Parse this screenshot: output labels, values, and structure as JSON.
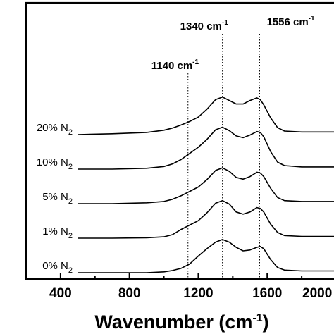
{
  "chart_data": {
    "type": "line",
    "xlabel": "Wavenumber (cm-1)",
    "xlabel_parts": {
      "main": "Wavenumber (cm",
      "sup": "-1",
      "close": ")"
    },
    "ylabel": "",
    "xlim": [
      200,
      2000
    ],
    "ylim": [
      0,
      5
    ],
    "x_ticks": [
      400,
      800,
      1200,
      1600,
      2000
    ],
    "x_tick_labels": [
      "400",
      "800",
      "1200",
      "1600",
      "2000"
    ],
    "grid": false,
    "reference_lines": [
      {
        "x": 1140,
        "label": "1140 cm",
        "sup": "-1"
      },
      {
        "x": 1340,
        "label": "1340 cm",
        "sup": "-1"
      },
      {
        "x": 1556,
        "label": "1556 cm",
        "sup": "-1"
      }
    ],
    "series": [
      {
        "name": "0% N2",
        "label_main": "0% N",
        "label_sub": "2",
        "offset": 0,
        "x": [
          500,
          700,
          900,
          1000,
          1050,
          1100,
          1150,
          1200,
          1250,
          1300,
          1340,
          1380,
          1420,
          1460,
          1500,
          1540,
          1560,
          1580,
          1620,
          1660,
          1700,
          1800,
          2000
        ],
        "y": [
          0.0,
          0.0,
          0.0,
          0.02,
          0.05,
          0.1,
          0.2,
          0.38,
          0.55,
          0.7,
          0.76,
          0.7,
          0.58,
          0.5,
          0.52,
          0.58,
          0.6,
          0.55,
          0.3,
          0.12,
          0.06,
          0.04,
          0.04
        ]
      },
      {
        "name": "1% N2",
        "label_main": "1% N",
        "label_sub": "2",
        "offset": 1,
        "x": [
          500,
          700,
          900,
          1000,
          1050,
          1100,
          1150,
          1200,
          1250,
          1300,
          1340,
          1380,
          1420,
          1460,
          1500,
          1540,
          1560,
          1580,
          1620,
          1660,
          1700,
          1800,
          2000
        ],
        "y": [
          0.0,
          0.0,
          0.01,
          0.03,
          0.08,
          0.2,
          0.3,
          0.4,
          0.58,
          0.8,
          0.86,
          0.78,
          0.6,
          0.55,
          0.6,
          0.7,
          0.68,
          0.6,
          0.32,
          0.13,
          0.06,
          0.04,
          0.04
        ]
      },
      {
        "name": "5% N2",
        "label_main": "5% N",
        "label_sub": "2",
        "offset": 2,
        "x": [
          500,
          700,
          900,
          1000,
          1050,
          1100,
          1150,
          1200,
          1250,
          1300,
          1340,
          1380,
          1420,
          1460,
          1500,
          1540,
          1560,
          1580,
          1620,
          1660,
          1700,
          1800,
          2000
        ],
        "y": [
          0.0,
          0.0,
          0.02,
          0.05,
          0.1,
          0.18,
          0.28,
          0.38,
          0.55,
          0.76,
          0.82,
          0.74,
          0.6,
          0.56,
          0.62,
          0.72,
          0.7,
          0.62,
          0.35,
          0.14,
          0.07,
          0.05,
          0.05
        ]
      },
      {
        "name": "10% N2",
        "label_main": "10% N",
        "label_sub": "2",
        "offset": 3,
        "x": [
          500,
          700,
          900,
          1000,
          1050,
          1100,
          1150,
          1200,
          1250,
          1300,
          1340,
          1380,
          1420,
          1460,
          1500,
          1540,
          1560,
          1580,
          1620,
          1660,
          1700,
          1800,
          2000
        ],
        "y": [
          0.0,
          0.0,
          0.02,
          0.06,
          0.12,
          0.22,
          0.36,
          0.5,
          0.68,
          0.9,
          0.96,
          0.88,
          0.76,
          0.72,
          0.78,
          0.86,
          0.84,
          0.74,
          0.4,
          0.16,
          0.08,
          0.05,
          0.05
        ]
      },
      {
        "name": "20% N2",
        "label_main": "20% N",
        "label_sub": "2",
        "offset": 4,
        "x": [
          500,
          700,
          900,
          1000,
          1050,
          1100,
          1150,
          1200,
          1250,
          1300,
          1340,
          1380,
          1420,
          1460,
          1500,
          1540,
          1560,
          1580,
          1620,
          1660,
          1700,
          1800,
          2000
        ],
        "y": [
          0.0,
          0.02,
          0.05,
          0.1,
          0.15,
          0.22,
          0.3,
          0.4,
          0.58,
          0.8,
          0.86,
          0.78,
          0.7,
          0.7,
          0.78,
          0.84,
          0.8,
          0.68,
          0.38,
          0.16,
          0.08,
          0.06,
          0.06
        ]
      }
    ]
  }
}
